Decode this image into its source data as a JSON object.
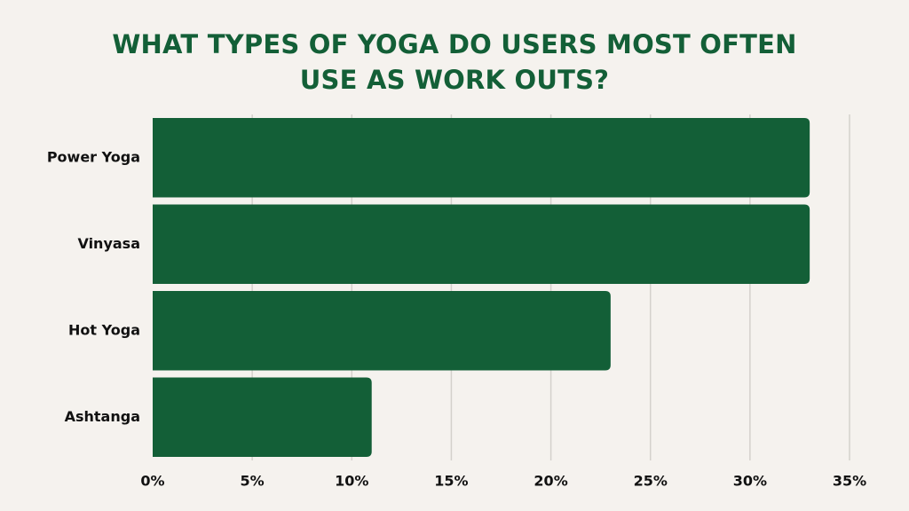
{
  "title_lines": [
    "WHAT TYPES OF YOGA DO USERS MOST OFTEN",
    "USE AS WORK OUTS?"
  ],
  "colors": {
    "background": "#f5f2ee",
    "bar": "#135f37",
    "title": "#135f37",
    "gridline": "#d4d1cc",
    "axis_text": "#111111"
  },
  "chart_data": {
    "type": "bar",
    "orientation": "horizontal",
    "title": "WHAT TYPES OF YOGA DO USERS MOST OFTEN USE AS WORK OUTS?",
    "categories": [
      "Power Yoga",
      "Vinyasa",
      "Hot Yoga",
      "Ashtanga"
    ],
    "values": [
      33,
      33,
      23,
      11
    ],
    "unit": "%",
    "xlim": [
      0,
      35
    ],
    "x_ticks": [
      0,
      5,
      10,
      15,
      20,
      25,
      30,
      35
    ],
    "x_tick_labels": [
      "0%",
      "5%",
      "10%",
      "15%",
      "20%",
      "25%",
      "30%",
      "35%"
    ],
    "xlabel": "",
    "ylabel": "",
    "grid": "vertical",
    "legend": "none"
  }
}
